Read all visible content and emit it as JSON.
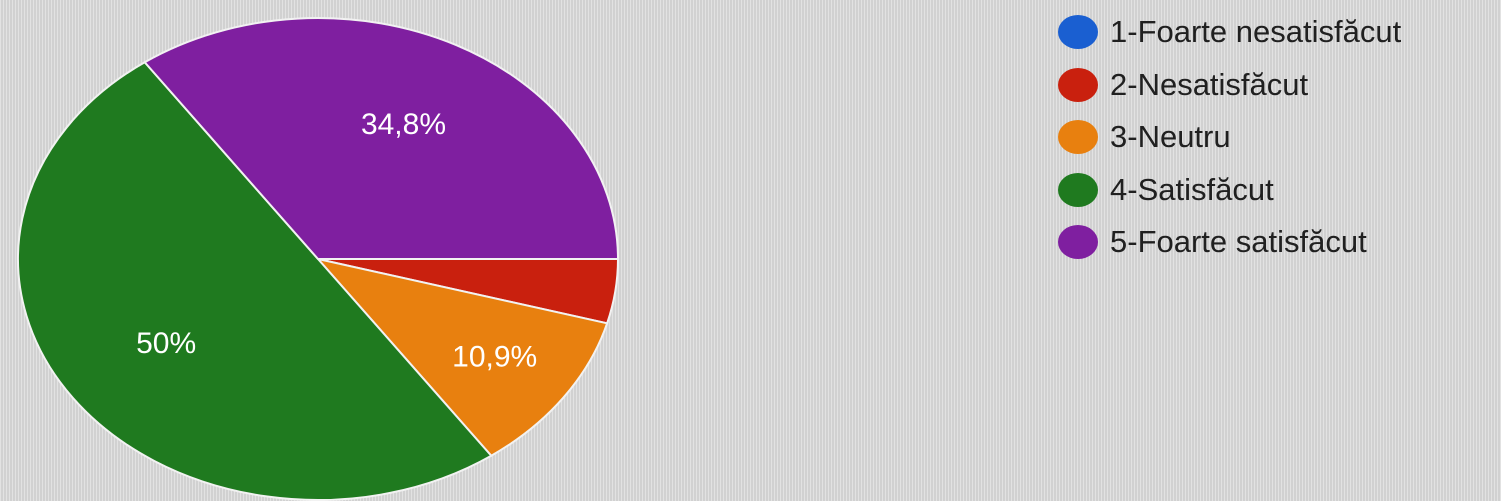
{
  "chart_data": {
    "type": "pie",
    "slices": [
      {
        "label": "1-Foarte nesatisfăcut",
        "value": 0,
        "display": "",
        "color": "#1a5fd1"
      },
      {
        "label": "2-Nesatisfăcut",
        "value": 4.3,
        "display": "",
        "color": "#c9200e"
      },
      {
        "label": "3-Neutru",
        "value": 10.9,
        "display": "10,9%",
        "color": "#e8800f"
      },
      {
        "label": "4-Satisfăcut",
        "value": 50,
        "display": "50%",
        "color": "#1f7a1f"
      },
      {
        "label": "5-Foarte satisfăcut",
        "value": 34.8,
        "display": "34,8%",
        "color": "#7f1fa0"
      }
    ],
    "legend_position": "top-right"
  }
}
